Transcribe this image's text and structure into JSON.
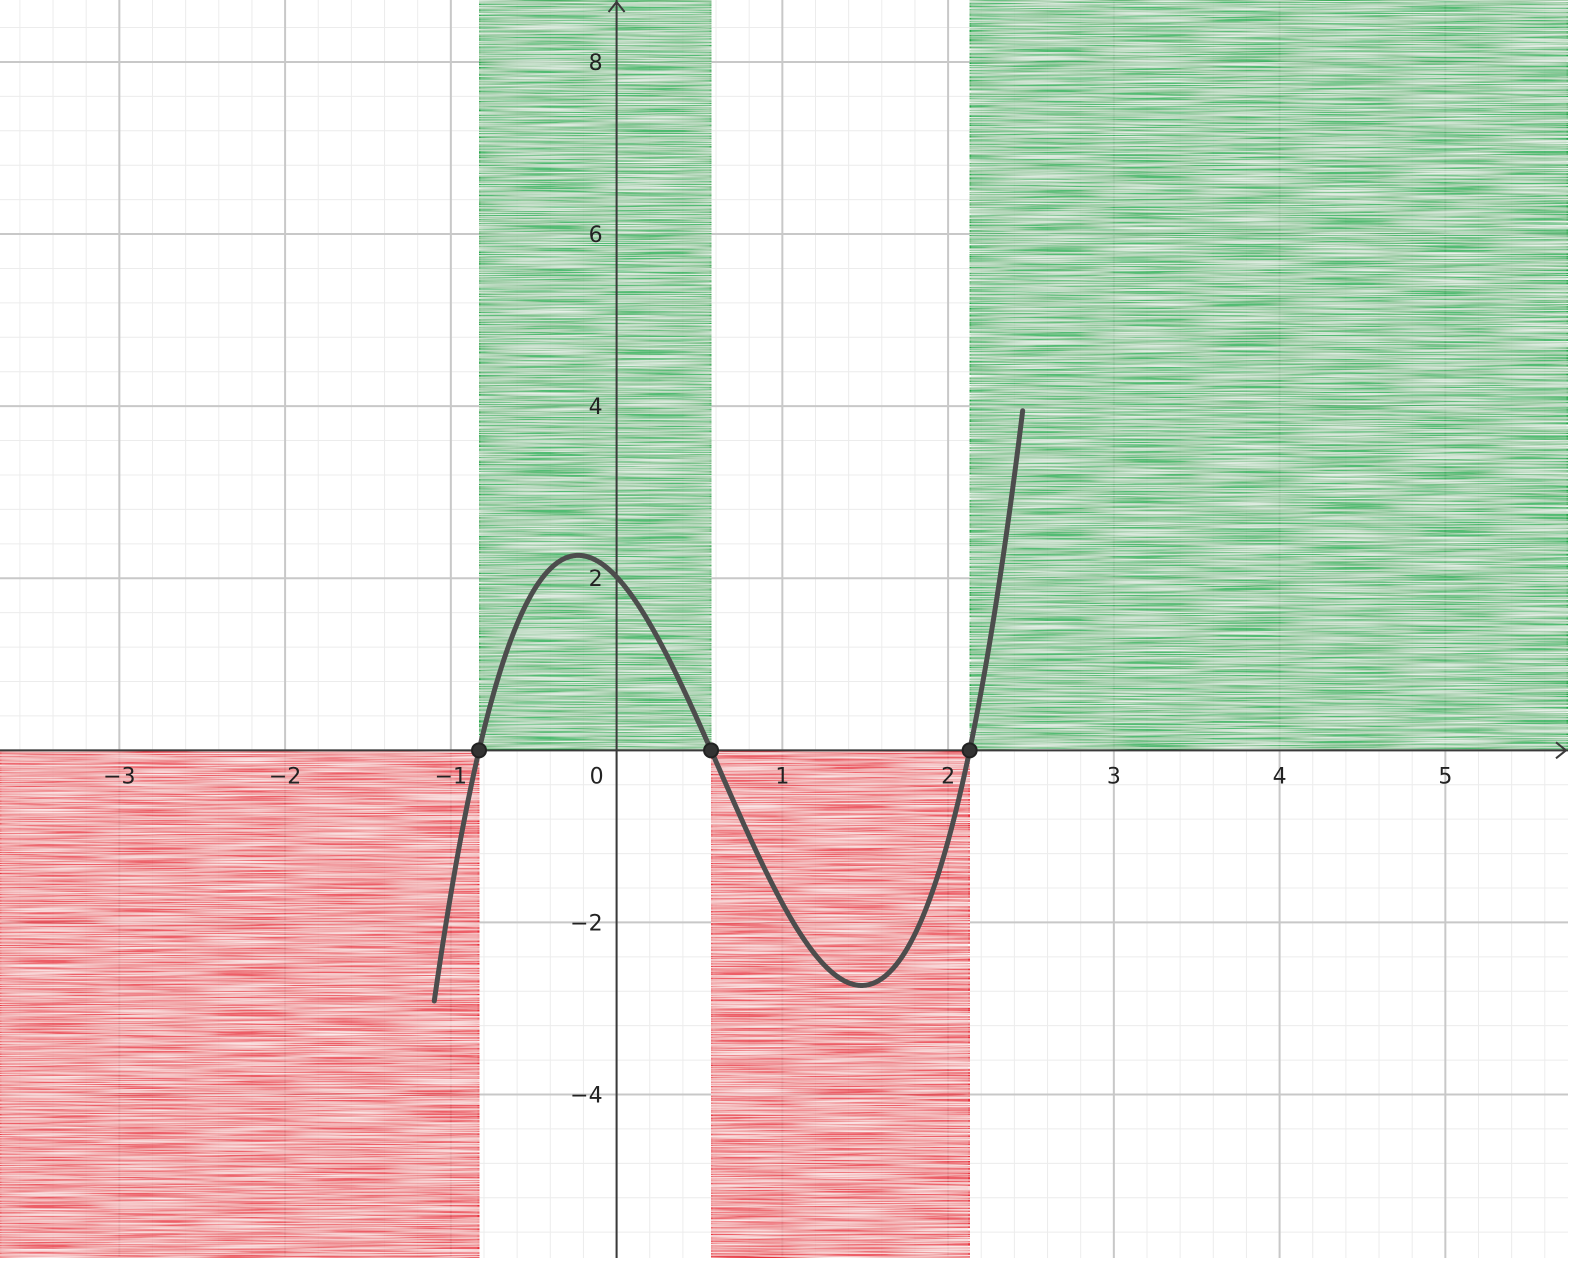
{
  "chart_data": {
    "type": "line",
    "title": "",
    "xlabel": "",
    "ylabel": "",
    "xlim": [
      -3.72,
      5.74
    ],
    "ylim": [
      -5.9,
      8.72
    ],
    "grid": true,
    "x_ticks": [
      {
        "value": -3,
        "label": "−3"
      },
      {
        "value": -2,
        "label": "−2"
      },
      {
        "value": -1,
        "label": "−1"
      },
      {
        "value": 0,
        "label": "0"
      },
      {
        "value": 1,
        "label": "1"
      },
      {
        "value": 2,
        "label": "2"
      },
      {
        "value": 3,
        "label": "3"
      },
      {
        "value": 4,
        "label": "4"
      },
      {
        "value": 5,
        "label": "5"
      }
    ],
    "y_ticks": [
      {
        "value": -4,
        "label": "−4"
      },
      {
        "value": -2,
        "label": "−2"
      },
      {
        "value": 2,
        "label": "2"
      },
      {
        "value": 4,
        "label": "4"
      },
      {
        "value": 6,
        "label": "6"
      },
      {
        "value": 8,
        "label": "8"
      }
    ],
    "curve": {
      "color": "#4d4d4d",
      "roots": [
        -0.83,
        0.57,
        2.13
      ],
      "leading_coefficient": 2.0,
      "x_range": [
        -1.1,
        2.45
      ]
    },
    "roots": [
      {
        "x": -0.83,
        "y": 0
      },
      {
        "x": 0.57,
        "y": 0
      },
      {
        "x": 2.13,
        "y": 0
      }
    ],
    "regions": [
      {
        "sign": "negative",
        "x_from": -3.72,
        "x_to": -0.83,
        "color": "#e8323c"
      },
      {
        "sign": "positive",
        "x_from": -0.83,
        "x_to": 0.57,
        "color": "#22a94a"
      },
      {
        "sign": "negative",
        "x_from": 0.57,
        "x_to": 2.13,
        "color": "#e8323c"
      },
      {
        "sign": "positive",
        "x_from": 2.13,
        "x_to": 5.74,
        "color": "#22a94a"
      }
    ],
    "colors": {
      "grid_major": "#c8c8c8",
      "grid_minor": "#ececec",
      "axis": "#3a3a3a"
    }
  }
}
